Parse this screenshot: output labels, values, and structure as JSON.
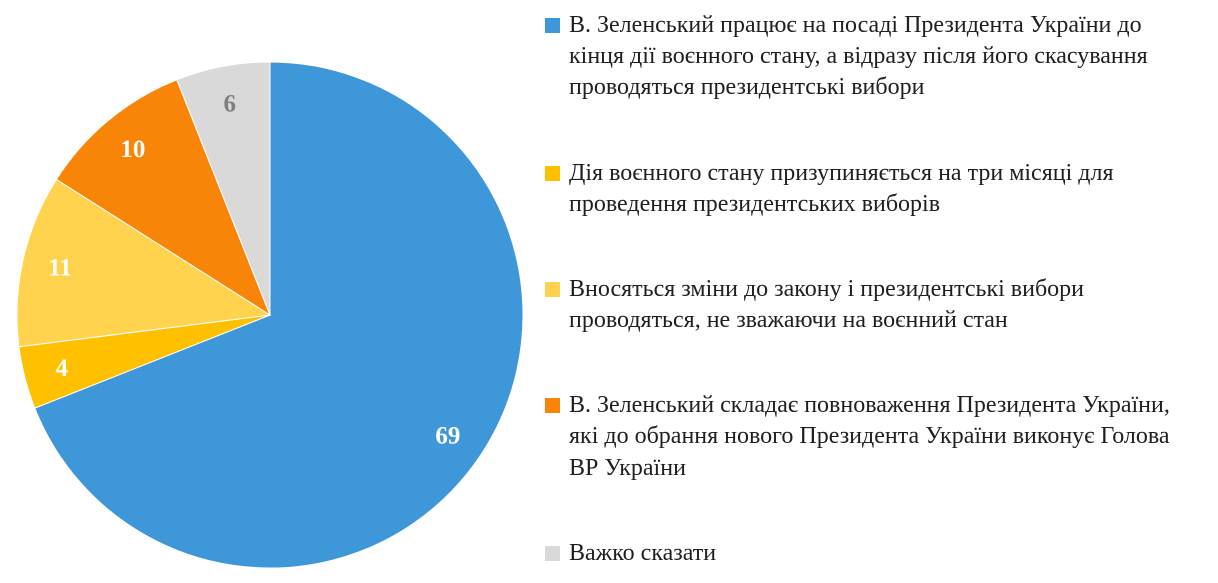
{
  "chart_data": {
    "type": "pie",
    "title": "",
    "legend_position": "right",
    "start_angle_deg": 0,
    "direction": "clockwise",
    "values_are": "percent",
    "background_color": "#FFFFFF",
    "legend_text_color": "#1F1F1F",
    "slices": [
      {
        "label": "В. Зеленський працює на посаді Президента України до кінця дії воєнного стану, а відразу після його скасування проводяться президентські вибори",
        "value": 69,
        "color": "#3E97D8",
        "label_color": "#FFFFFF"
      },
      {
        "label": "Дія воєнного стану призупиняється на три місяці для проведення президентських виборів",
        "value": 4,
        "color": "#FFC000",
        "label_color": "#FFFFFF"
      },
      {
        "label": "Вносяться зміни до закону і президентські вибори проводяться, не зважаючи на воєнний стан",
        "value": 11,
        "color": "#FFD34D",
        "label_color": "#FFFFFF"
      },
      {
        "label": "В. Зеленський складає повноваження Президента України, які до обрання нового Президента України виконує Голова ВР України",
        "value": 10,
        "color": "#F98508",
        "label_color": "#FFFFFF"
      },
      {
        "label": "Важко сказати",
        "value": 6,
        "color": "#D9D9D9",
        "label_color": "#7F7F7F"
      }
    ]
  }
}
